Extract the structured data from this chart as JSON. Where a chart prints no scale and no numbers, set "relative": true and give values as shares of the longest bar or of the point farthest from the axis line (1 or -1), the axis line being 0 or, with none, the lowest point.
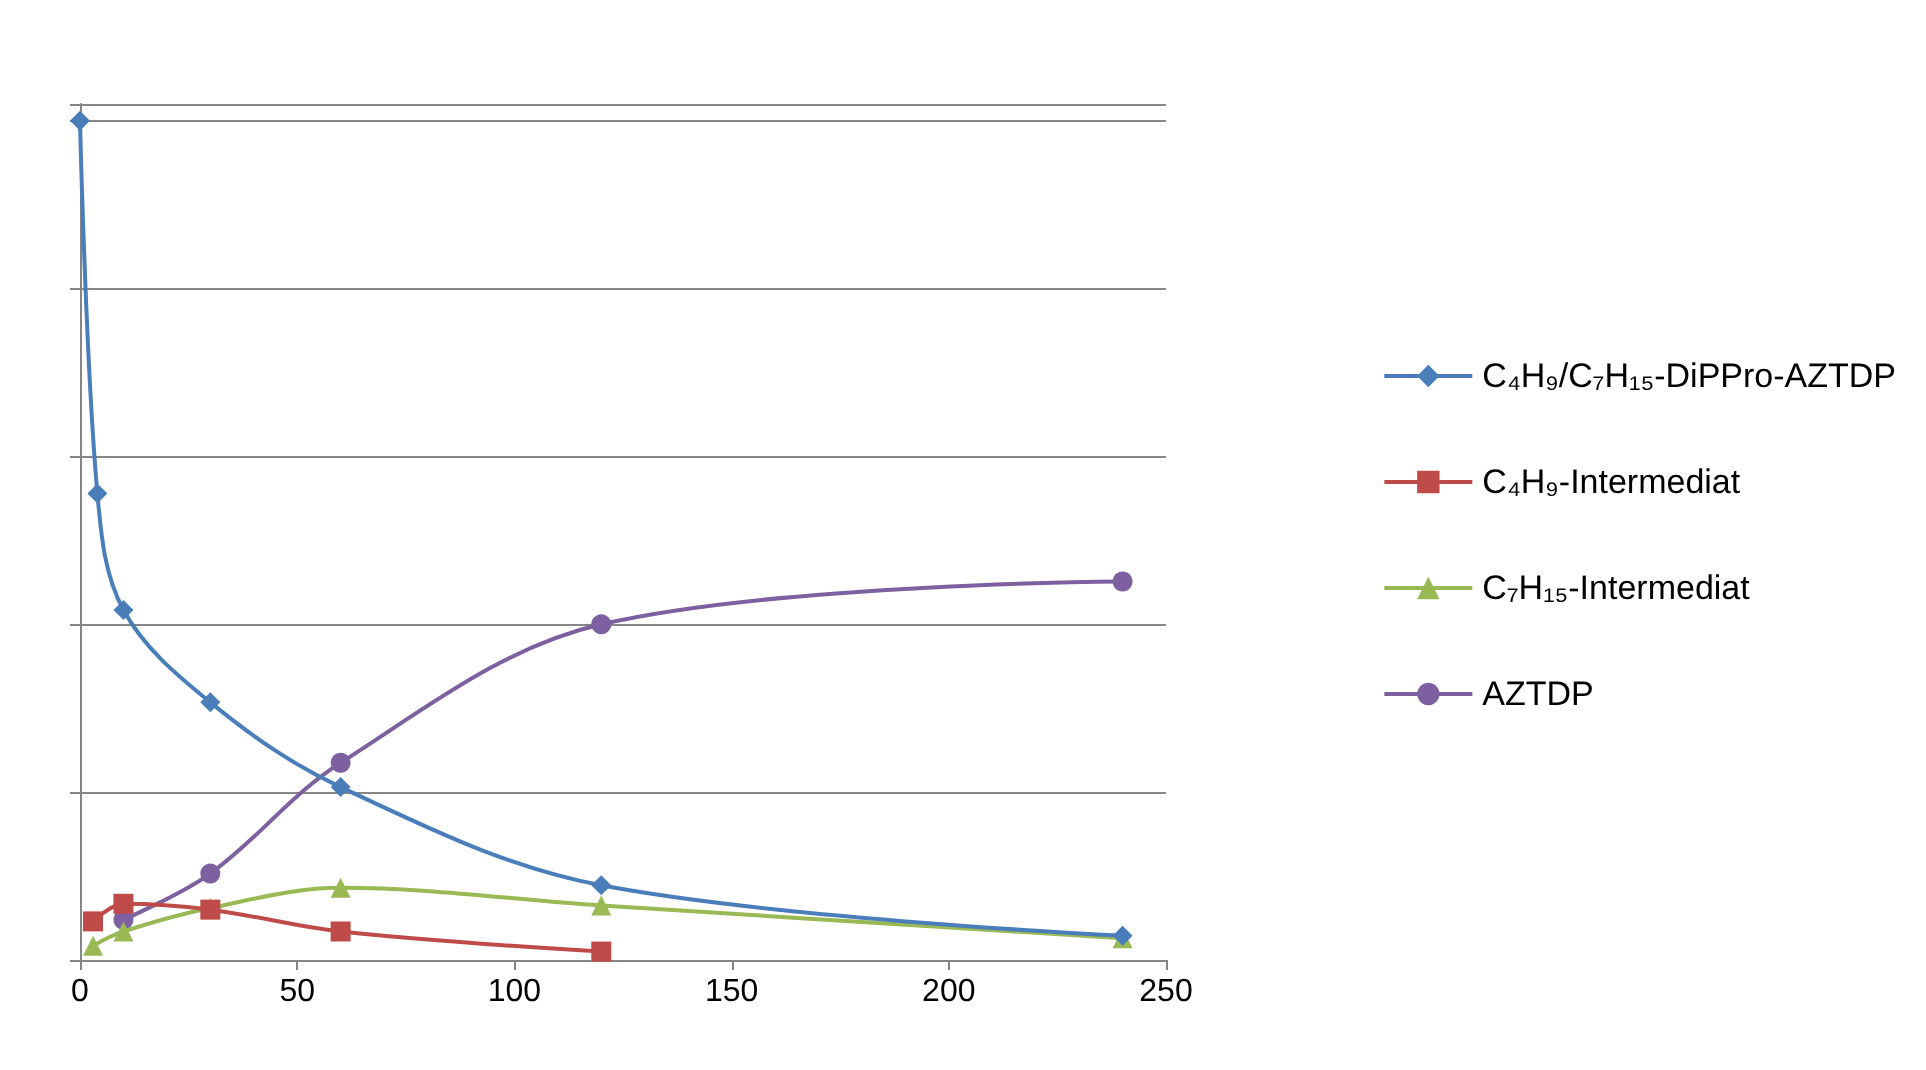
{
  "chart_data": {
    "type": "line",
    "relative": true,
    "grid": "y",
    "legend": "right",
    "xlim": [
      0,
      250
    ],
    "xticks": [
      0,
      50,
      100,
      150,
      200,
      250
    ],
    "series": [
      {
        "name": "C₄H₉/C₇H₁₅-DiPPro-AZTDP",
        "color": "#4a7ebb",
        "marker": "diamond",
        "x": [
          0,
          4,
          10,
          30,
          60,
          120,
          240
        ],
        "values": [
          1,
          0.556,
          0.417,
          0.307,
          0.206,
          0.089,
          0.029
        ]
      },
      {
        "name": "C₄H₉-Intermediat",
        "color": "#be4b48",
        "marker": "square",
        "x": [
          3,
          10,
          30,
          60,
          120
        ],
        "values": [
          0.046,
          0.067,
          0.06,
          0.034,
          0.01
        ]
      },
      {
        "name": "C₇H₁₅-Intermediat",
        "color": "#98b954",
        "marker": "triangle",
        "x": [
          3,
          10,
          30,
          60,
          120,
          240
        ],
        "values": [
          0.017,
          0.034,
          0.062,
          0.086,
          0.065,
          0.026
        ]
      },
      {
        "name": "AZTDP",
        "color": "#7d60a0",
        "marker": "circle",
        "x": [
          10,
          30,
          60,
          120,
          240
        ],
        "values": [
          0.048,
          0.103,
          0.235,
          0.4,
          0.451
        ]
      }
    ]
  }
}
